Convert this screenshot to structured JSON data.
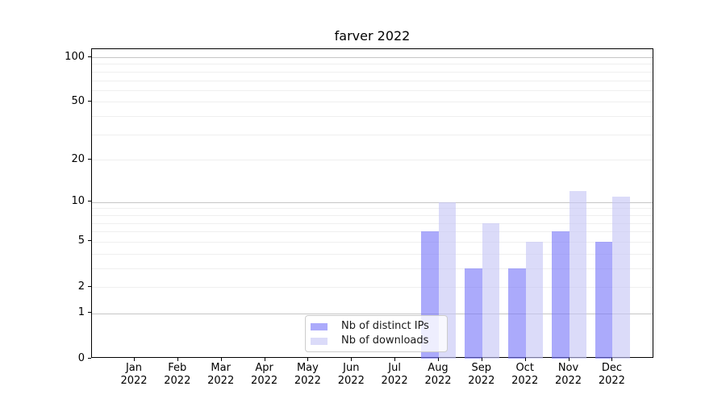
{
  "title": "farver 2022",
  "chart_data": {
    "type": "bar",
    "title": "farver 2022",
    "categories": [
      "Jan",
      "Feb",
      "Mar",
      "Apr",
      "May",
      "Jun",
      "Jul",
      "Aug",
      "Sep",
      "Oct",
      "Nov",
      "Dec"
    ],
    "year": "2022",
    "series": [
      {
        "name": "Nb of distinct IPs",
        "color": "rgba(120,118,249,0.62)",
        "values": [
          0,
          0,
          0,
          0,
          0,
          0,
          0,
          6,
          3,
          3,
          6,
          5
        ]
      },
      {
        "name": "Nb of downloads",
        "color": "rgba(197,197,246,0.62)",
        "values": [
          0,
          0,
          0,
          0,
          0,
          0,
          0,
          10,
          7,
          5,
          12,
          11
        ]
      }
    ],
    "yticks": [
      0,
      1,
      2,
      5,
      10,
      20,
      50,
      100
    ],
    "major_gridlines": [
      1,
      10,
      100
    ],
    "minor_gridlines": [
      2,
      3,
      4,
      5,
      6,
      7,
      8,
      9,
      20,
      30,
      40,
      50,
      60,
      70,
      80,
      90
    ],
    "scale": "log1p",
    "ylim": [
      0,
      113
    ],
    "xlabel": "",
    "ylabel": "",
    "grid": "on",
    "legend_position": "lower center"
  },
  "colors": {
    "bar_distinct_ips": "rgba(120,118,249,0.62)",
    "bar_downloads": "rgba(197,197,246,0.62)",
    "major_grid": "#c6c6c6",
    "minor_grid": "#efefef",
    "spine": "#000000",
    "legend_border": "#cccccc"
  }
}
